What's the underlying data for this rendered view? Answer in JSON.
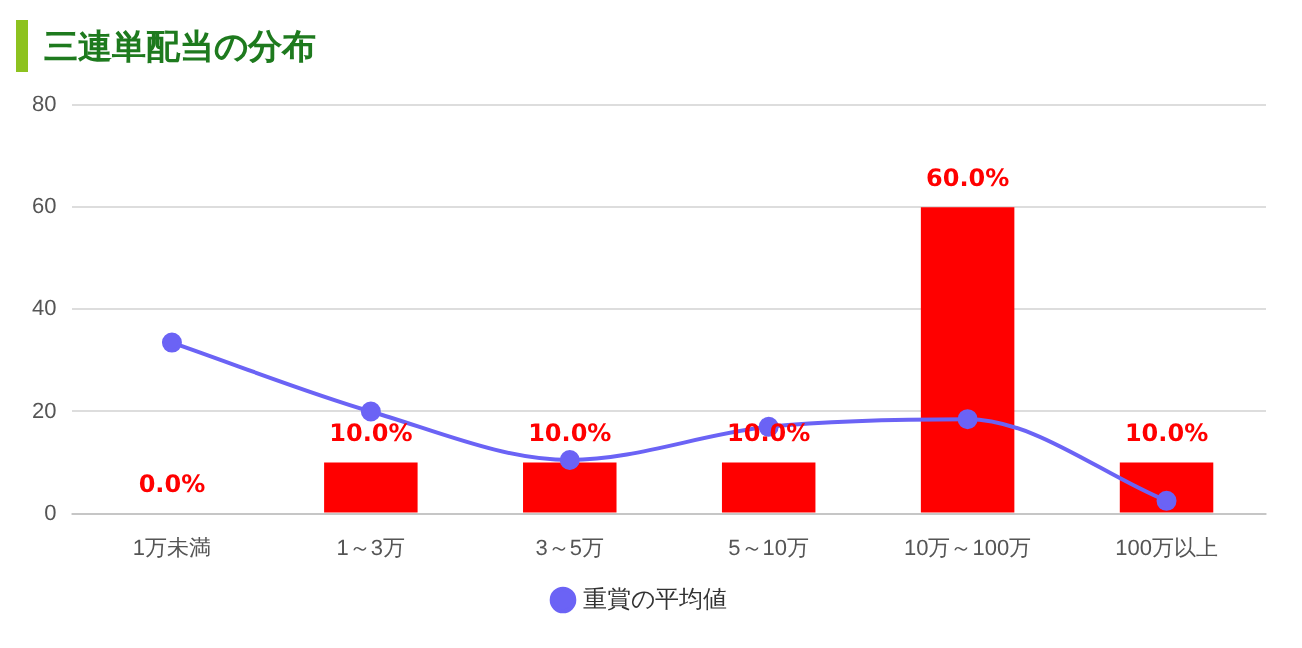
{
  "chart_data": {
    "type": "bar",
    "title": "三連単配当の分布",
    "categories": [
      "1万未満",
      "1～3万",
      "3～5万",
      "5～10万",
      "10万～100万",
      "100万以上"
    ],
    "series": [
      {
        "type": "line",
        "name": "重賞の平均値",
        "color": "#6b63f5",
        "values": [
          33.5,
          20,
          10.5,
          17,
          18.5,
          2.5
        ]
      },
      {
        "color": "#ff0000",
        "values": [
          0,
          10,
          10,
          10,
          60,
          10
        ],
        "value_labels": [
          "0.0%",
          "10.0%",
          "10.0%",
          "10.0%",
          "60.0%",
          "10.0%"
        ]
      }
    ],
    "ylim": [
      0,
      80
    ],
    "yticks": [
      0,
      20,
      40,
      60,
      80
    ],
    "grid": "y",
    "legend": "bottom",
    "marker": "circle"
  }
}
